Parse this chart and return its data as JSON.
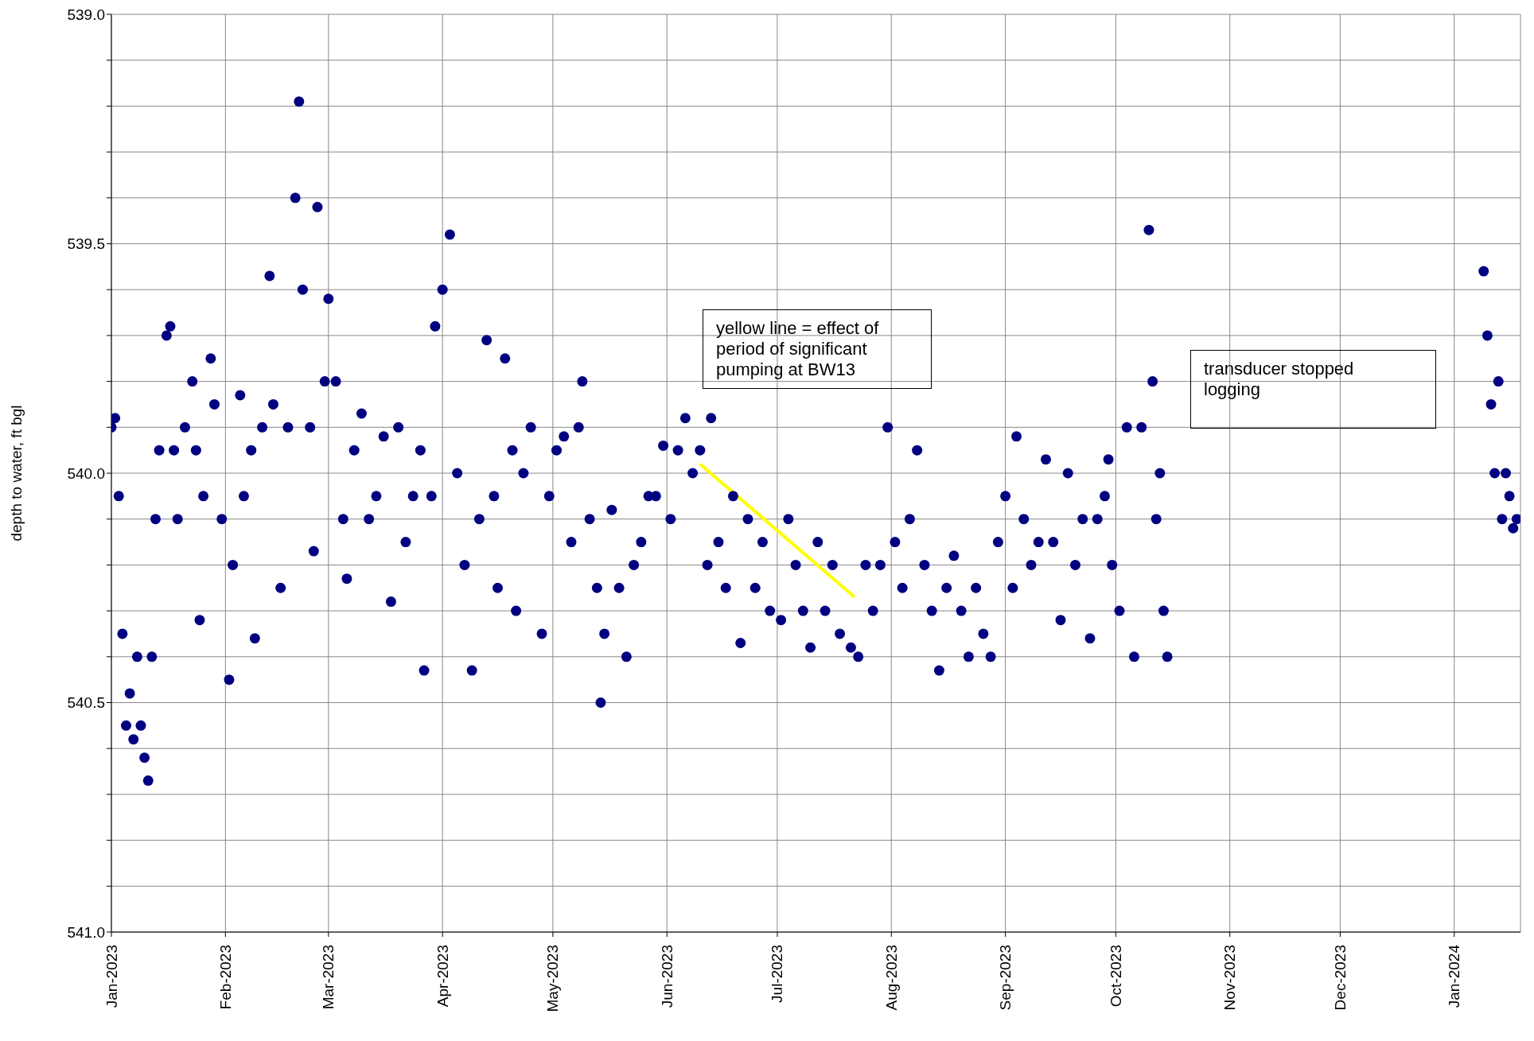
{
  "chart_data": {
    "type": "scatter",
    "ylabel": "depth to water, ft bgl",
    "xlim": [
      "2023-01-01",
      "2024-01-19"
    ],
    "xticks": [
      {
        "value": "2023-01-01",
        "label": "Jan-2023"
      },
      {
        "value": "2023-02-01",
        "label": "Feb-2023"
      },
      {
        "value": "2023-03-01",
        "label": "Mar-2023"
      },
      {
        "value": "2023-04-01",
        "label": "Apr-2023"
      },
      {
        "value": "2023-05-01",
        "label": "May-2023"
      },
      {
        "value": "2023-06-01",
        "label": "Jun-2023"
      },
      {
        "value": "2023-07-01",
        "label": "Jul-2023"
      },
      {
        "value": "2023-08-01",
        "label": "Aug-2023"
      },
      {
        "value": "2023-09-01",
        "label": "Sep-2023"
      },
      {
        "value": "2023-10-01",
        "label": "Oct-2023"
      },
      {
        "value": "2023-11-01",
        "label": "Nov-2023"
      },
      {
        "value": "2023-12-01",
        "label": "Dec-2023"
      },
      {
        "value": "2024-01-01",
        "label": "Jan-2024"
      }
    ],
    "ylim": [
      541,
      539
    ],
    "yticks": [
      {
        "value": 539,
        "label": "539.0"
      },
      {
        "value": 539.1,
        "label": null
      },
      {
        "value": 539.2,
        "label": null
      },
      {
        "value": 539.3,
        "label": null
      },
      {
        "value": 539.4,
        "label": null
      },
      {
        "value": 539.5,
        "label": "539.5"
      },
      {
        "value": 539.6,
        "label": null
      },
      {
        "value": 539.7,
        "label": null
      },
      {
        "value": 539.8,
        "label": null
      },
      {
        "value": 539.9,
        "label": null
      },
      {
        "value": 540,
        "label": "540.0"
      },
      {
        "value": 540.1,
        "label": null
      },
      {
        "value": 540.2,
        "label": null
      },
      {
        "value": 540.3,
        "label": null
      },
      {
        "value": 540.4,
        "label": null
      },
      {
        "value": 540.5,
        "label": "540.5"
      },
      {
        "value": 540.6,
        "label": null
      },
      {
        "value": 540.7,
        "label": null
      },
      {
        "value": 540.8,
        "label": null
      },
      {
        "value": 540.9,
        "label": null
      },
      {
        "value": 541,
        "label": "541.0"
      }
    ],
    "grid": true,
    "annotations": [
      "yellow line = effect of period of significant pumping at BW13",
      "transducer stopped logging"
    ],
    "series": [
      {
        "color": "#000080",
        "marker": "circle",
        "x": [
          "2023-01-01",
          "2023-01-02",
          "2023-01-03",
          "2023-01-04",
          "2023-01-05",
          "2023-01-06",
          "2023-01-07",
          "2023-01-08",
          "2023-01-09",
          "2023-01-10",
          "2023-01-11",
          "2023-01-12",
          "2023-01-13",
          "2023-01-14",
          "2023-01-16",
          "2023-01-17",
          "2023-01-18",
          "2023-01-19",
          "2023-01-21",
          "2023-01-23",
          "2023-01-24",
          "2023-01-25",
          "2023-01-26",
          "2023-01-28",
          "2023-01-29",
          "2023-01-31",
          "2023-02-02",
          "2023-02-03",
          "2023-02-05",
          "2023-02-06",
          "2023-02-08",
          "2023-02-09",
          "2023-02-11",
          "2023-02-13",
          "2023-02-14",
          "2023-02-16",
          "2023-02-18",
          "2023-02-20",
          "2023-02-21",
          "2023-02-22",
          "2023-02-24",
          "2023-02-25",
          "2023-02-26",
          "2023-02-28",
          "2023-03-01",
          "2023-03-03",
          "2023-03-05",
          "2023-03-06",
          "2023-03-08",
          "2023-03-10",
          "2023-03-12",
          "2023-03-14",
          "2023-03-16",
          "2023-03-18",
          "2023-03-20",
          "2023-03-22",
          "2023-03-24",
          "2023-03-26",
          "2023-03-27",
          "2023-03-29",
          "2023-03-30",
          "2023-04-01",
          "2023-04-03",
          "2023-04-05",
          "2023-04-07",
          "2023-04-09",
          "2023-04-11",
          "2023-04-13",
          "2023-04-15",
          "2023-04-16",
          "2023-04-18",
          "2023-04-20",
          "2023-04-21",
          "2023-04-23",
          "2023-04-25",
          "2023-04-28",
          "2023-04-30",
          "2023-05-02",
          "2023-05-04",
          "2023-05-06",
          "2023-05-08",
          "2023-05-09",
          "2023-05-11",
          "2023-05-13",
          "2023-05-14",
          "2023-05-15",
          "2023-05-17",
          "2023-05-19",
          "2023-05-21",
          "2023-05-23",
          "2023-05-25",
          "2023-05-27",
          "2023-05-29",
          "2023-05-31",
          "2023-06-02",
          "2023-06-04",
          "2023-06-06",
          "2023-06-08",
          "2023-06-10",
          "2023-06-12",
          "2023-06-13",
          "2023-06-15",
          "2023-06-17",
          "2023-06-19",
          "2023-06-21",
          "2023-06-23",
          "2023-06-25",
          "2023-06-27",
          "2023-06-29",
          "2023-07-02",
          "2023-07-04",
          "2023-07-06",
          "2023-07-08",
          "2023-07-10",
          "2023-07-12",
          "2023-07-14",
          "2023-07-16",
          "2023-07-18",
          "2023-07-21",
          "2023-07-23",
          "2023-07-25",
          "2023-07-27",
          "2023-07-29",
          "2023-07-31",
          "2023-08-02",
          "2023-08-04",
          "2023-08-06",
          "2023-08-08",
          "2023-08-10",
          "2023-08-12",
          "2023-08-14",
          "2023-08-16",
          "2023-08-18",
          "2023-08-20",
          "2023-08-22",
          "2023-08-24",
          "2023-08-26",
          "2023-08-28",
          "2023-08-30",
          "2023-09-01",
          "2023-09-03",
          "2023-09-04",
          "2023-09-06",
          "2023-09-08",
          "2023-09-10",
          "2023-09-12",
          "2023-09-14",
          "2023-09-16",
          "2023-09-18",
          "2023-09-20",
          "2023-09-22",
          "2023-09-24",
          "2023-09-26",
          "2023-09-28",
          "2023-09-29",
          "2023-09-30",
          "2023-10-02",
          "2023-10-04",
          "2023-10-06",
          "2023-10-08",
          "2023-10-10",
          "2023-10-11",
          "2023-10-12",
          "2023-10-13",
          "2023-10-14",
          "2023-10-15",
          "2024-01-09",
          "2024-01-10",
          "2024-01-11",
          "2024-01-12",
          "2024-01-13",
          "2024-01-14",
          "2024-01-15",
          "2024-01-16",
          "2024-01-17",
          "2024-01-18"
        ],
        "values": [
          539.9,
          539.88,
          540.05,
          540.35,
          540.55,
          540.48,
          540.58,
          540.4,
          540.55,
          540.62,
          540.67,
          540.4,
          540.1,
          539.95,
          539.7,
          539.68,
          539.95,
          540.1,
          539.9,
          539.8,
          539.95,
          540.32,
          540.05,
          539.75,
          539.85,
          540.1,
          540.45,
          540.2,
          539.83,
          540.05,
          539.95,
          540.36,
          539.9,
          539.57,
          539.85,
          540.25,
          539.9,
          539.4,
          539.19,
          539.6,
          539.9,
          540.17,
          539.42,
          539.8,
          539.62,
          539.8,
          540.1,
          540.23,
          539.95,
          539.87,
          540.1,
          540.05,
          539.92,
          540.28,
          539.9,
          540.15,
          540.05,
          539.95,
          540.43,
          540.05,
          539.68,
          539.6,
          539.48,
          540,
          540.2,
          540.43,
          540.1,
          539.71,
          540.05,
          540.25,
          539.75,
          539.95,
          540.3,
          540,
          539.9,
          540.35,
          540.05,
          539.95,
          539.92,
          540.15,
          539.9,
          539.8,
          540.1,
          540.25,
          540.5,
          540.35,
          540.08,
          540.25,
          540.4,
          540.2,
          540.15,
          540.05,
          540.05,
          539.94,
          540.1,
          539.95,
          539.88,
          540,
          539.95,
          540.2,
          539.88,
          540.15,
          540.25,
          540.05,
          540.37,
          540.1,
          540.25,
          540.15,
          540.3,
          540.32,
          540.1,
          540.2,
          540.3,
          540.38,
          540.15,
          540.3,
          540.2,
          540.35,
          540.38,
          540.4,
          540.2,
          540.3,
          540.2,
          539.9,
          540.15,
          540.25,
          540.1,
          539.95,
          540.2,
          540.3,
          540.43,
          540.25,
          540.18,
          540.3,
          540.4,
          540.25,
          540.35,
          540.4,
          540.15,
          540.05,
          540.25,
          539.92,
          540.1,
          540.2,
          540.15,
          539.97,
          540.15,
          540.32,
          540,
          540.2,
          540.1,
          540.36,
          540.1,
          540.05,
          539.97,
          540.2,
          540.3,
          539.9,
          540.4,
          539.9,
          539.47,
          539.8,
          540.1,
          540,
          540.3,
          540.4,
          539.56,
          539.7,
          539.85,
          540,
          539.8,
          540.1,
          540,
          540.05,
          540.12,
          540.1
        ]
      },
      {
        "type": "line",
        "marker": "none",
        "color": "#ffff00",
        "x": [
          "2023-06-10",
          "2023-07-22"
        ],
        "values": [
          539.98,
          540.27
        ]
      }
    ]
  }
}
